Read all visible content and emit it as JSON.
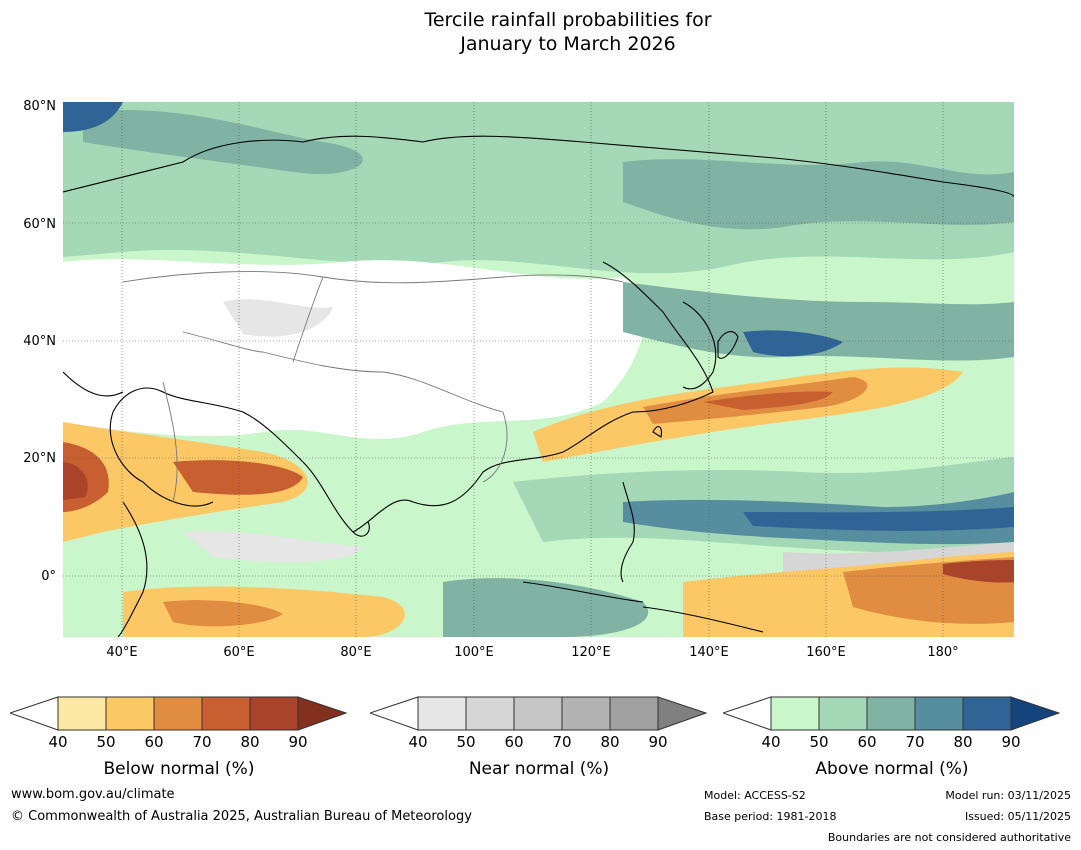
{
  "title": {
    "line1": "Tercile rainfall probabilities for",
    "line2": "January to March 2026"
  },
  "map": {
    "lat_labels": [
      "80°N",
      "60°N",
      "40°N",
      "20°N",
      "0°"
    ],
    "lon_labels": [
      "40°E",
      "60°E",
      "80°E",
      "100°E",
      "120°E",
      "140°E",
      "160°E",
      "180°"
    ]
  },
  "colorbars": [
    {
      "label": "Below normal (%)",
      "ticks": [
        "40",
        "50",
        "60",
        "70",
        "80",
        "90"
      ],
      "colors": [
        "#ffffff",
        "#fde9a3",
        "#fcc866",
        "#e08d42",
        "#c75f30",
        "#a9442a",
        "#84301f"
      ]
    },
    {
      "label": "Near normal (%)",
      "ticks": [
        "40",
        "50",
        "60",
        "70",
        "80",
        "90"
      ],
      "colors": [
        "#ffffff",
        "#e6e6e6",
        "#d6d6d6",
        "#c6c6c6",
        "#b3b3b3",
        "#a0a0a0",
        "#808080"
      ]
    },
    {
      "label": "Above normal (%)",
      "ticks": [
        "40",
        "50",
        "60",
        "70",
        "80",
        "90"
      ],
      "colors": [
        "#ffffff",
        "#c9f6cb",
        "#a5d8b7",
        "#81b3a5",
        "#568e9f",
        "#306496",
        "#15437c"
      ]
    }
  ],
  "footer": {
    "website": "www.bom.gov.au/climate",
    "copyright": "© Commonwealth of Australia 2025, Australian Bureau of Meteorology",
    "model": "Model: ACCESS-S2",
    "base_period": "Base period: 1981-2018",
    "model_run": "Model run: 03/11/2025",
    "issued": "Issued: 05/11/2025",
    "disclaimer": "Boundaries are not considered authoritative"
  }
}
